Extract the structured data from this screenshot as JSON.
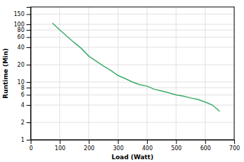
{
  "chart_data": {
    "type": "line",
    "x": [
      75,
      100,
      125,
      150,
      175,
      200,
      225,
      250,
      275,
      300,
      325,
      350,
      375,
      400,
      425,
      450,
      475,
      500,
      525,
      550,
      575,
      600,
      625,
      650
    ],
    "values": [
      105,
      80,
      62,
      48,
      38,
      28,
      23,
      19,
      16,
      13,
      11.5,
      10,
      9,
      8.5,
      7.5,
      7,
      6.5,
      6,
      5.7,
      5.3,
      5.0,
      4.5,
      4.0,
      3.1
    ],
    "color": "#3aaa6a",
    "xlabel": "Load (Watt)",
    "ylabel": "Runtime (Min)",
    "xlim": [
      0,
      700
    ],
    "ylim": [
      1,
      200
    ],
    "xticks": [
      0,
      100,
      200,
      300,
      400,
      500,
      600,
      700
    ],
    "yticks": [
      1,
      2,
      4,
      6,
      8,
      10,
      20,
      40,
      60,
      80,
      100,
      150
    ],
    "log": "y",
    "grid": true
  }
}
